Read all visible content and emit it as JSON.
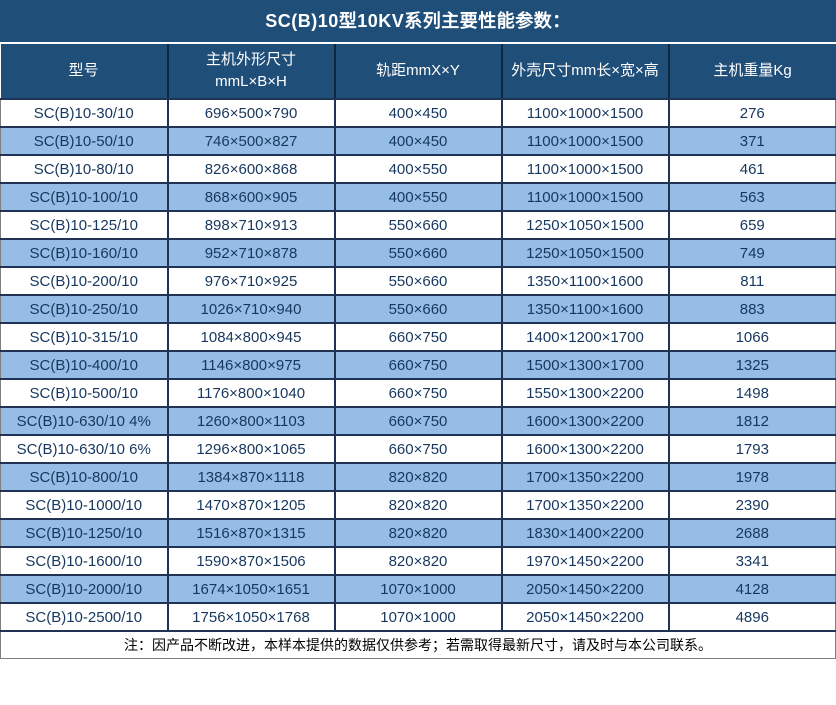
{
  "title": "SC(B)10型10KV系列主要性能参数：",
  "note": "注：因产品不断改进，本样本提供的数据仅供参考；若需取得最新尺寸，请及时与本公司联系。",
  "colors": {
    "header_bg": "#1F4E79",
    "row_bg": "#FFFFFF",
    "row_alt_bg": "#95BDE5",
    "body_text": "#17375E",
    "grid_line": "#203354"
  },
  "table": {
    "columns": [
      {
        "label": "型号"
      },
      {
        "label": "主机外形尺寸\nmmL×B×H"
      },
      {
        "label": "轨距mmX×Y"
      },
      {
        "label": "外壳尺寸mm长×宽×高"
      },
      {
        "label": "主机重量Kg"
      }
    ],
    "rows": [
      [
        "SC(B)10-30/10",
        "696×500×790",
        "400×450",
        "1100×1000×1500",
        "276"
      ],
      [
        "SC(B)10-50/10",
        "746×500×827",
        "400×450",
        "1100×1000×1500",
        "371"
      ],
      [
        "SC(B)10-80/10",
        "826×600×868",
        "400×550",
        "1100×1000×1500",
        "461"
      ],
      [
        "SC(B)10-100/10",
        "868×600×905",
        "400×550",
        "1100×1000×1500",
        "563"
      ],
      [
        "SC(B)10-125/10",
        "898×710×913",
        "550×660",
        "1250×1050×1500",
        "659"
      ],
      [
        "SC(B)10-160/10",
        "952×710×878",
        "550×660",
        "1250×1050×1500",
        "749"
      ],
      [
        "SC(B)10-200/10",
        "976×710×925",
        "550×660",
        "1350×1100×1600",
        "811"
      ],
      [
        "SC(B)10-250/10",
        "1026×710×940",
        "550×660",
        "1350×1100×1600",
        "883"
      ],
      [
        "SC(B)10-315/10",
        "1084×800×945",
        "660×750",
        "1400×1200×1700",
        "1066"
      ],
      [
        "SC(B)10-400/10",
        "1146×800×975",
        "660×750",
        "1500×1300×1700",
        "1325"
      ],
      [
        "SC(B)10-500/10",
        "1176×800×1040",
        "660×750",
        "1550×1300×2200",
        "1498"
      ],
      [
        "SC(B)10-630/10 4%",
        "1260×800×1103",
        "660×750",
        "1600×1300×2200",
        "1812"
      ],
      [
        "SC(B)10-630/10 6%",
        "1296×800×1065",
        "660×750",
        "1600×1300×2200",
        "1793"
      ],
      [
        "SC(B)10-800/10",
        "1384×870×1118",
        "820×820",
        "1700×1350×2200",
        "1978"
      ],
      [
        "SC(B)10-1000/10",
        "1470×870×1205",
        "820×820",
        "1700×1350×2200",
        "2390"
      ],
      [
        "SC(B)10-1250/10",
        "1516×870×1315",
        "820×820",
        "1830×1400×2200",
        "2688"
      ],
      [
        "SC(B)10-1600/10",
        "1590×870×1506",
        "820×820",
        "1970×1450×2200",
        "3341"
      ],
      [
        "SC(B)10-2000/10",
        "1674×1050×1651",
        "1070×1000",
        "2050×1450×2200",
        "4128"
      ],
      [
        "SC(B)10-2500/10",
        "1756×1050×1768",
        "1070×1000",
        "2050×1450×2200",
        "4896"
      ]
    ]
  }
}
